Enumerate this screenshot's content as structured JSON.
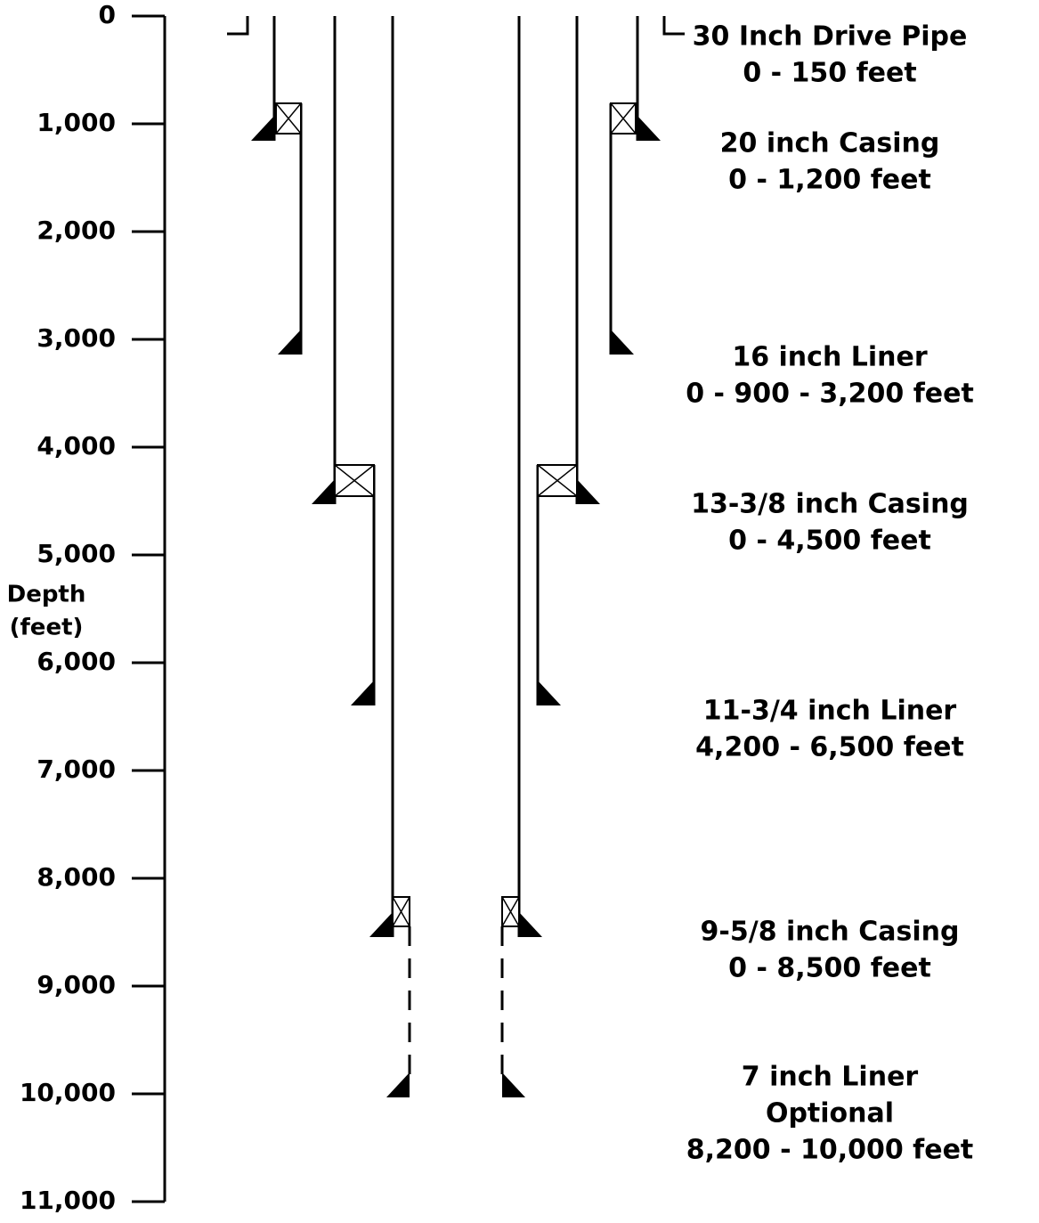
{
  "axis": {
    "label": [
      "Depth",
      "(feet)"
    ],
    "ticks": [
      {
        "value": 0,
        "label": "0"
      },
      {
        "value": 1000,
        "label": "1,000"
      },
      {
        "value": 2000,
        "label": "2,000"
      },
      {
        "value": 3000,
        "label": "3,000"
      },
      {
        "value": 4000,
        "label": "4,000"
      },
      {
        "value": 5000,
        "label": "5,000"
      },
      {
        "value": 6000,
        "label": "6,000"
      },
      {
        "value": 7000,
        "label": "7,000"
      },
      {
        "value": 8000,
        "label": "8,000"
      },
      {
        "value": 9000,
        "label": "9,000"
      },
      {
        "value": 10000,
        "label": "10,000"
      },
      {
        "value": 11000,
        "label": "11,000"
      }
    ]
  },
  "strings": [
    {
      "lines": [
        "30 Inch Drive Pipe",
        "0 - 150 feet"
      ]
    },
    {
      "lines": [
        "20 inch Casing",
        "0 - 1,200 feet"
      ]
    },
    {
      "lines": [
        "16 inch Liner",
        "0 - 900 - 3,200 feet"
      ]
    },
    {
      "lines": [
        "13-3/8 inch Casing",
        "0 - 4,500 feet"
      ]
    },
    {
      "lines": [
        "11-3/4 inch Liner",
        "4,200 - 6,500 feet"
      ]
    },
    {
      "lines": [
        "9-5/8 inch Casing",
        "0 - 8,500 feet"
      ]
    },
    {
      "lines": [
        "7 inch Liner",
        "Optional",
        "8,200 - 10,000 feet"
      ]
    }
  ]
}
